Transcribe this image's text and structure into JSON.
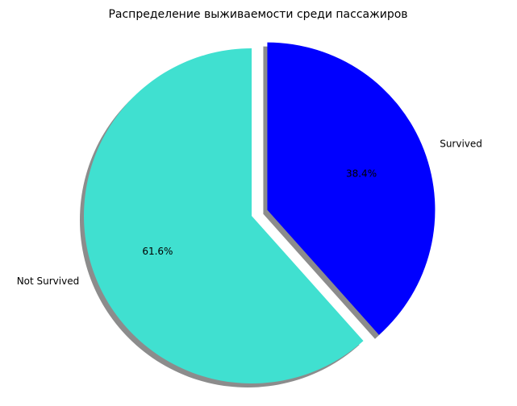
{
  "chart_data": {
    "type": "pie",
    "title": "Распределение выживаемости среди пассажиров",
    "categories": [
      "Not Survived",
      "Survived"
    ],
    "values": [
      61.6,
      38.4
    ],
    "value_labels": [
      "61.6%",
      "38.4%"
    ],
    "colors": [
      "#40e0d0",
      "#0000ff"
    ],
    "explode": [
      0,
      0.1
    ],
    "start_angle": 90,
    "shadow": true
  }
}
